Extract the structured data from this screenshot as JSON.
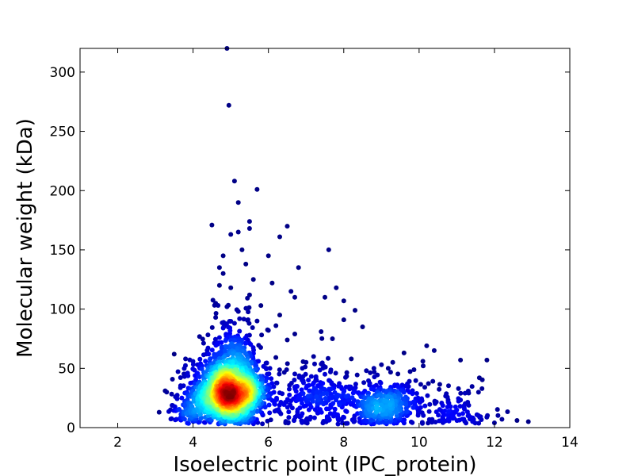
{
  "chart_data": {
    "type": "scatter",
    "title": "",
    "xlabel": "Isoelectric point (IPC_protein)",
    "ylabel": "Molecular weight (kDa)",
    "xlim": [
      1,
      14
    ],
    "ylim": [
      0,
      320
    ],
    "xticks": [
      2,
      4,
      6,
      8,
      10,
      12,
      14
    ],
    "yticks": [
      0,
      50,
      100,
      150,
      200,
      250,
      300
    ],
    "xtick_labels": [
      "2",
      "4",
      "6",
      "8",
      "10",
      "12",
      "14"
    ],
    "ytick_labels": [
      "0",
      "50",
      "100",
      "150",
      "200",
      "250",
      "300"
    ],
    "grid": false,
    "legend": "none",
    "color_encoding": "point density (jet colormap: blue = low, red = high)",
    "colors": {
      "low_density": "#00008f",
      "mid_low": "#0080ff",
      "mid": "#40ffbf",
      "mid_high": "#ffff00",
      "high": "#ff4000",
      "max": "#800000"
    },
    "points": [
      [
        4.9,
        320
      ],
      [
        4.95,
        272
      ],
      [
        5.1,
        208
      ],
      [
        5.7,
        201
      ],
      [
        5.2,
        190
      ],
      [
        5.5,
        174
      ],
      [
        6.5,
        170
      ],
      [
        4.5,
        171
      ],
      [
        5.5,
        168
      ],
      [
        5.2,
        165
      ],
      [
        6.3,
        161
      ],
      [
        5.0,
        163
      ],
      [
        7.6,
        150
      ],
      [
        5.3,
        150
      ],
      [
        4.8,
        145
      ],
      [
        6.0,
        145
      ],
      [
        4.7,
        135
      ],
      [
        5.4,
        138
      ],
      [
        6.8,
        135
      ],
      [
        4.8,
        130
      ],
      [
        5.6,
        125
      ],
      [
        6.1,
        122
      ],
      [
        4.7,
        120
      ],
      [
        5.0,
        118
      ],
      [
        7.8,
        118
      ],
      [
        6.6,
        115
      ],
      [
        5.5,
        112
      ],
      [
        7.5,
        110
      ],
      [
        6.7,
        110
      ],
      [
        8.0,
        107
      ],
      [
        4.6,
        105
      ],
      [
        5.8,
        103
      ],
      [
        4.9,
        102
      ],
      [
        8.3,
        99
      ],
      [
        5.2,
        98
      ],
      [
        6.3,
        95
      ],
      [
        4.6,
        93
      ],
      [
        8.0,
        91
      ],
      [
        5.7,
        90
      ],
      [
        5.1,
        88
      ],
      [
        6.2,
        86
      ],
      [
        8.5,
        85
      ],
      [
        4.8,
        84
      ],
      [
        6.0,
        82
      ],
      [
        7.4,
        81
      ],
      [
        6.7,
        79
      ],
      [
        5.5,
        78
      ],
      [
        7.7,
        75
      ],
      [
        6.5,
        74
      ],
      [
        4.7,
        76
      ],
      [
        3.5,
        62
      ],
      [
        3.8,
        58
      ],
      [
        10.2,
        69
      ],
      [
        10.4,
        65
      ],
      [
        9.6,
        63
      ],
      [
        11.8,
        57
      ],
      [
        11.1,
        57
      ],
      [
        10.1,
        56
      ],
      [
        11.6,
        42
      ],
      [
        12.2,
        7
      ],
      [
        12.6,
        6
      ],
      [
        12.9,
        5
      ],
      [
        12.0,
        4
      ],
      [
        11.3,
        10
      ],
      [
        3.1,
        13
      ],
      [
        3.3,
        30
      ],
      [
        3.4,
        15
      ],
      [
        9.3,
        55
      ],
      [
        8.8,
        50
      ],
      [
        9.0,
        53
      ],
      [
        7.2,
        60
      ],
      [
        7.0,
        55
      ],
      [
        6.9,
        50
      ],
      [
        7.5,
        45
      ],
      [
        8.2,
        58
      ],
      [
        8.6,
        48
      ]
    ]
  }
}
